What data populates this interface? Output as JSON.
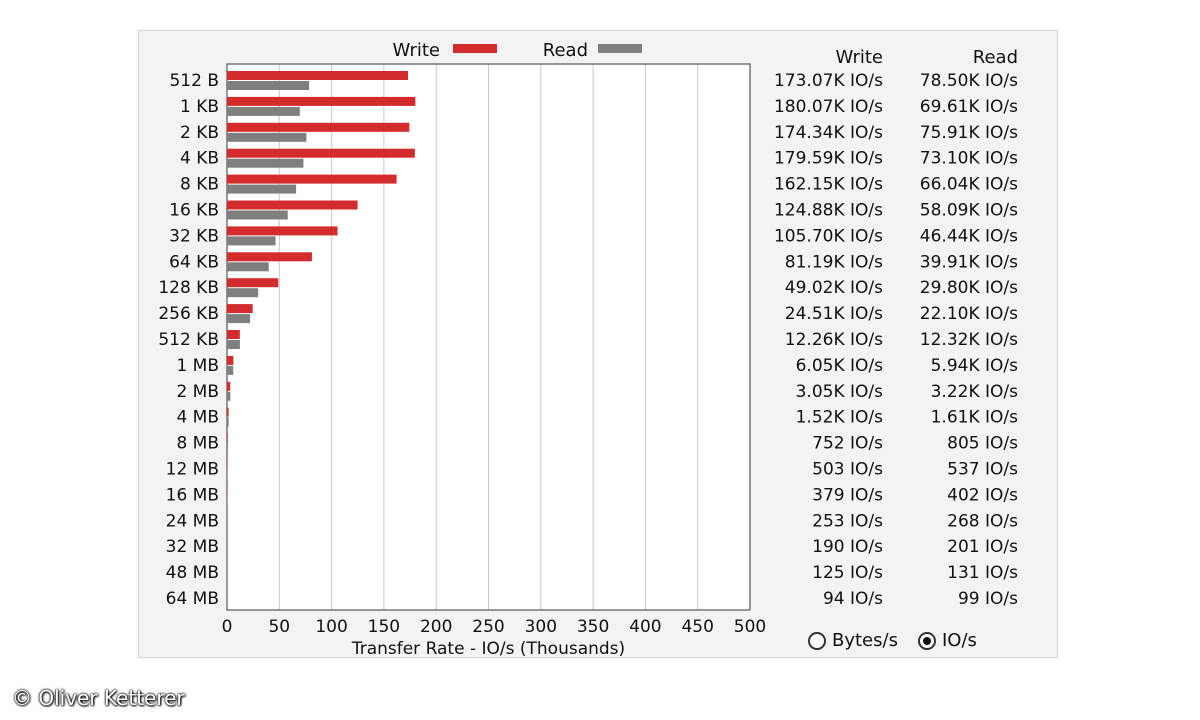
{
  "chart_data": {
    "type": "bar",
    "title": "",
    "xlabel": "Transfer Rate - IO/s (Thousands)",
    "ylabel": "",
    "xlim": [
      0,
      500
    ],
    "x_ticks": [
      "0",
      "50",
      "100",
      "150",
      "200",
      "250",
      "300",
      "350",
      "400",
      "450",
      "500"
    ],
    "grid": true,
    "orientation": "horizontal",
    "legend_position": "top",
    "categories": [
      "512 B",
      "1 KB",
      "2 KB",
      "4 KB",
      "8 KB",
      "16 KB",
      "32 KB",
      "64 KB",
      "128 KB",
      "256 KB",
      "512 KB",
      "1 MB",
      "2 MB",
      "4 MB",
      "8 MB",
      "12 MB",
      "16 MB",
      "24 MB",
      "32 MB",
      "48 MB",
      "64 MB"
    ],
    "series": [
      {
        "name": "Write",
        "color": "#d42c2c",
        "values": [
          173.07,
          180.07,
          174.34,
          179.59,
          162.15,
          124.88,
          105.7,
          81.19,
          49.02,
          24.51,
          12.26,
          6.05,
          3.05,
          1.52,
          0.752,
          0.503,
          0.379,
          0.253,
          0.19,
          0.125,
          0.094
        ]
      },
      {
        "name": "Read",
        "color": "#7f7f7f",
        "values": [
          78.5,
          69.61,
          75.91,
          73.1,
          66.04,
          58.09,
          46.44,
          39.91,
          29.8,
          22.1,
          12.32,
          5.94,
          3.22,
          1.61,
          0.805,
          0.537,
          0.402,
          0.268,
          0.201,
          0.131,
          0.099
        ]
      }
    ]
  },
  "table": {
    "headers": [
      "Write",
      "Read"
    ],
    "rows": [
      [
        "173.07K IO/s",
        "78.50K IO/s"
      ],
      [
        "180.07K IO/s",
        "69.61K IO/s"
      ],
      [
        "174.34K IO/s",
        "75.91K IO/s"
      ],
      [
        "179.59K IO/s",
        "73.10K IO/s"
      ],
      [
        "162.15K IO/s",
        "66.04K IO/s"
      ],
      [
        "124.88K IO/s",
        "58.09K IO/s"
      ],
      [
        "105.70K IO/s",
        "46.44K IO/s"
      ],
      [
        "81.19K IO/s",
        "39.91K IO/s"
      ],
      [
        "49.02K IO/s",
        "29.80K IO/s"
      ],
      [
        "24.51K IO/s",
        "22.10K IO/s"
      ],
      [
        "12.26K IO/s",
        "12.32K IO/s"
      ],
      [
        "6.05K IO/s",
        "5.94K IO/s"
      ],
      [
        "3.05K IO/s",
        "3.22K IO/s"
      ],
      [
        "1.52K IO/s",
        "1.61K IO/s"
      ],
      [
        "752 IO/s",
        "805 IO/s"
      ],
      [
        "503 IO/s",
        "537 IO/s"
      ],
      [
        "379 IO/s",
        "402 IO/s"
      ],
      [
        "253 IO/s",
        "268 IO/s"
      ],
      [
        "190 IO/s",
        "201 IO/s"
      ],
      [
        "125 IO/s",
        "131 IO/s"
      ],
      [
        "94 IO/s",
        "99 IO/s"
      ]
    ]
  },
  "radio": {
    "bytes_label": "Bytes/s",
    "ios_label": "IO/s",
    "selected": "IO/s"
  },
  "watermark": "© Oliver Ketterer"
}
